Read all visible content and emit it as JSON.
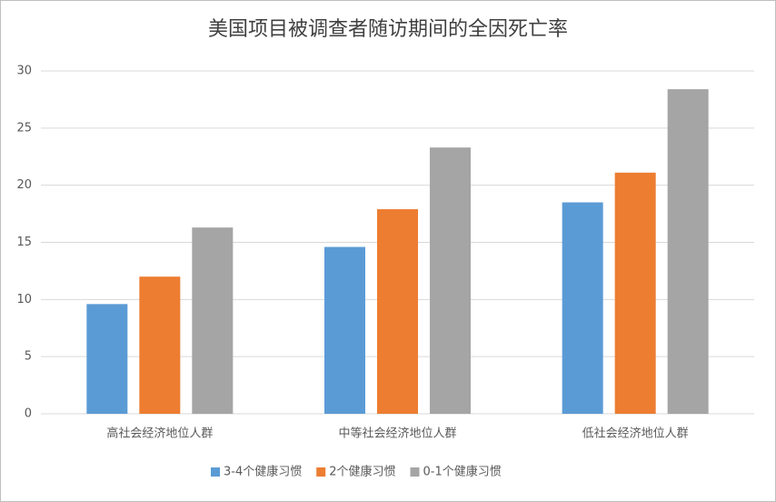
{
  "chart_data": {
    "type": "bar",
    "title": "美国项目被调查者随访期间的全因死亡率",
    "categories": [
      "高社会经济地位人群",
      "中等社会经济地位人群",
      "低社会经济地位人群"
    ],
    "series": [
      {
        "name": "3-4个健康习惯",
        "color": "#5b9bd5",
        "values": [
          9.6,
          14.6,
          18.5
        ]
      },
      {
        "name": "2个健康习惯",
        "color": "#ed7d31",
        "values": [
          12.0,
          17.9,
          21.1
        ]
      },
      {
        "name": "0-1个健康习惯",
        "color": "#a5a5a5",
        "values": [
          16.3,
          23.3,
          28.4
        ]
      }
    ],
    "ylim": [
      0,
      30
    ],
    "yticks": [
      0,
      5,
      10,
      15,
      20,
      25,
      30
    ],
    "grid": true,
    "legend": "bottom"
  }
}
